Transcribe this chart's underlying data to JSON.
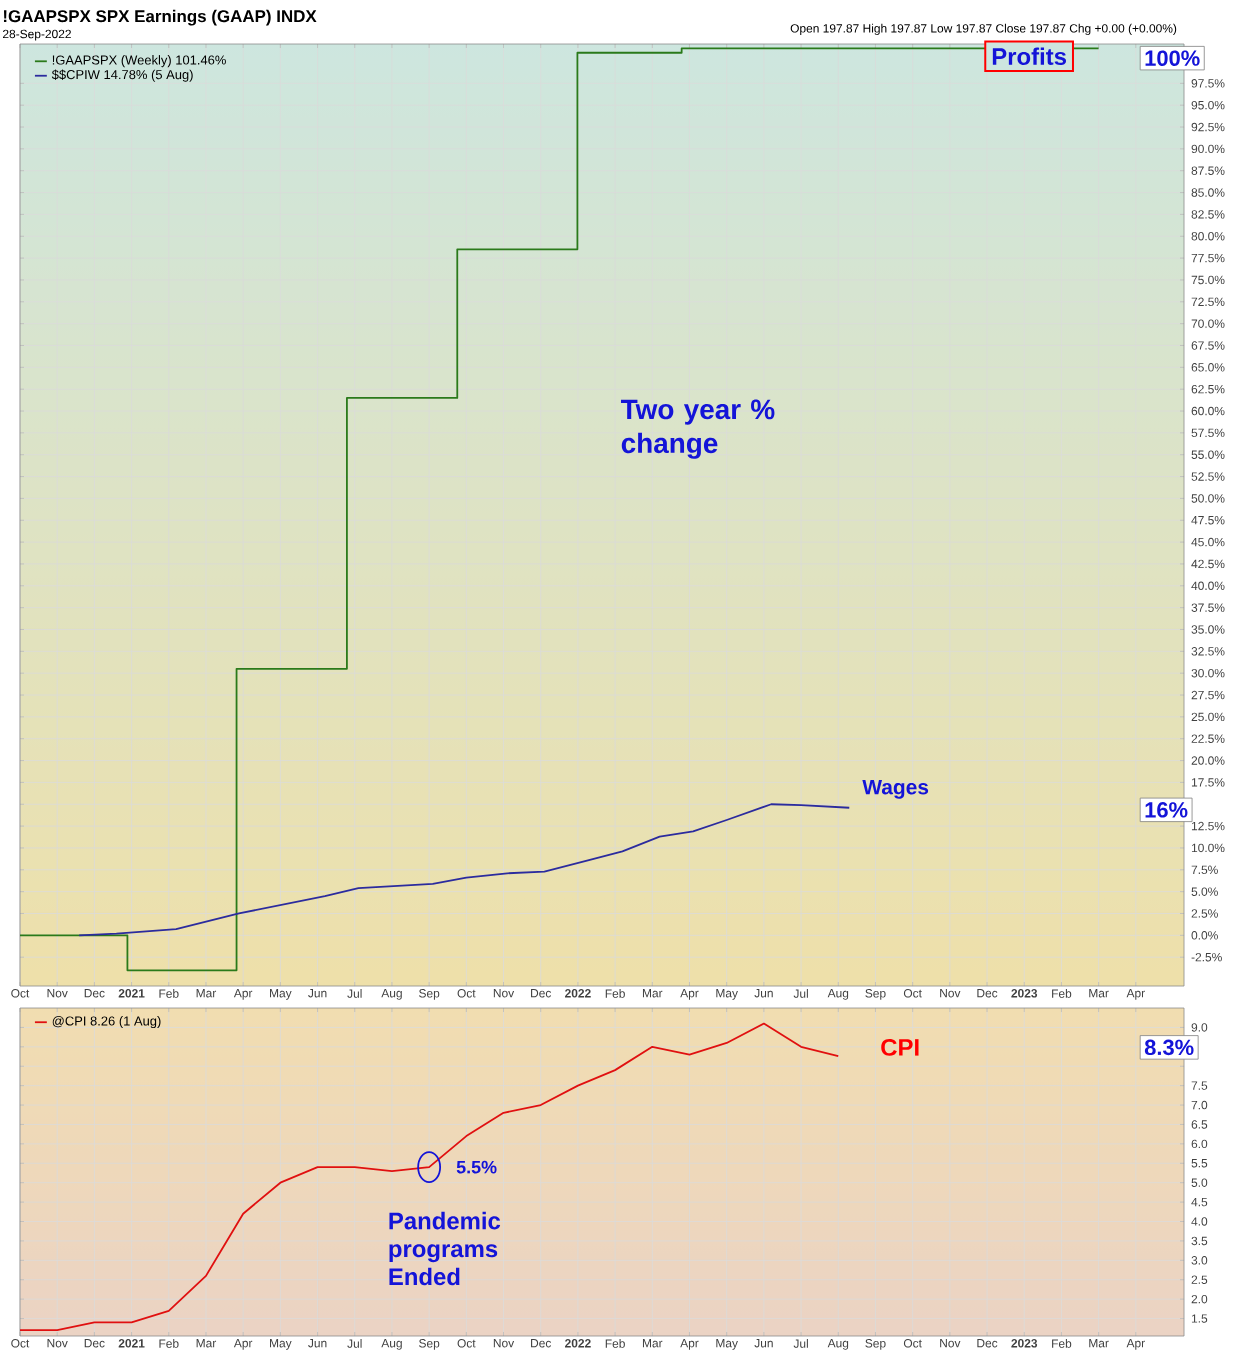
{
  "chart_data": [
    {
      "type": "line",
      "title": "!GAAPSPX SPX Earnings (GAAP) INDX",
      "subtitle": "28-Sep-2022",
      "series": [
        {
          "name": "!GAAPSPX (Weekly) 101.46%",
          "type": "step",
          "color": "#2a7a1a",
          "x": [
            "2020-10-01",
            "2020-12-28",
            "2021-03-26",
            "2021-06-25",
            "2021-09-24",
            "2021-12-31",
            "2022-03-25",
            "2023-03-01"
          ],
          "values": [
            0,
            -4,
            30.5,
            61.5,
            78.5,
            101,
            101.5,
            101.5
          ]
        },
        {
          "name": "$$CPIW 14.78% (5 Aug)",
          "type": "line",
          "color": "#2b2b9e",
          "x": [
            "2020-11-19",
            "2020-12-19",
            "2021-02-07",
            "2021-03-28",
            "2021-06-07",
            "2021-07-04",
            "2021-09-04",
            "2021-10-01",
            "2021-11-04",
            "2021-12-04",
            "2022-01-10",
            "2022-02-07",
            "2022-03-07",
            "2022-04-04",
            "2022-05-01",
            "2022-06-07",
            "2022-07-01",
            "2022-08-10"
          ],
          "values": [
            0,
            0.2,
            0.7,
            2.5,
            4.5,
            5.4,
            5.9,
            6.6,
            7.1,
            7.3,
            8.6,
            9.6,
            11.3,
            11.9,
            13.2,
            15.0,
            14.9,
            14.6
          ]
        }
      ],
      "xlim": [
        "2020-10",
        "2023-05-10"
      ],
      "ylim": [
        -5.8,
        102
      ],
      "xticks": [
        {
          "value": "2020-10",
          "label": "Oct"
        },
        {
          "value": "2020-11",
          "label": "Nov"
        },
        {
          "value": "2020-12",
          "label": "Dec"
        },
        {
          "value": "2021-01",
          "label": "2021"
        },
        {
          "value": "2021-02",
          "label": "Feb"
        },
        {
          "value": "2021-03",
          "label": "Mar"
        },
        {
          "value": "2021-04",
          "label": "Apr"
        },
        {
          "value": "2021-05",
          "label": "May"
        },
        {
          "value": "2021-06",
          "label": "Jun"
        },
        {
          "value": "2021-07",
          "label": "Jul"
        },
        {
          "value": "2021-08",
          "label": "Aug"
        },
        {
          "value": "2021-09",
          "label": "Sep"
        },
        {
          "value": "2021-10",
          "label": "Oct"
        },
        {
          "value": "2021-11",
          "label": "Nov"
        },
        {
          "value": "2021-12",
          "label": "Dec"
        },
        {
          "value": "2022-01",
          "label": "2022"
        },
        {
          "value": "2022-02",
          "label": "Feb"
        },
        {
          "value": "2022-03",
          "label": "Mar"
        },
        {
          "value": "2022-04",
          "label": "Apr"
        },
        {
          "value": "2022-05",
          "label": "May"
        },
        {
          "value": "2022-06",
          "label": "Jun"
        },
        {
          "value": "2022-07",
          "label": "Jul"
        },
        {
          "value": "2022-08",
          "label": "Aug"
        },
        {
          "value": "2022-09",
          "label": "Sep"
        },
        {
          "value": "2022-10",
          "label": "Oct"
        },
        {
          "value": "2022-11",
          "label": "Nov"
        },
        {
          "value": "2022-12",
          "label": "Dec"
        },
        {
          "value": "2023-01",
          "label": "2023"
        },
        {
          "value": "2023-02",
          "label": "Feb"
        },
        {
          "value": "2023-03",
          "label": "Mar"
        },
        {
          "value": "2023-04",
          "label": "Apr"
        }
      ],
      "yticks": [
        {
          "value": -2.5,
          "label": "-2.5%"
        },
        {
          "value": 0,
          "label": "0.0%"
        },
        {
          "value": 2.5,
          "label": "2.5%"
        },
        {
          "value": 5,
          "label": "5.0%"
        },
        {
          "value": 7.5,
          "label": "7.5%"
        },
        {
          "value": 10,
          "label": "10.0%"
        },
        {
          "value": 12.5,
          "label": "12.5%"
        },
        {
          "value": 15,
          "label": null
        },
        {
          "value": 17.5,
          "label": "17.5%"
        },
        {
          "value": 20,
          "label": "20.0%"
        },
        {
          "value": 22.5,
          "label": "22.5%"
        },
        {
          "value": 25,
          "label": "25.0%"
        },
        {
          "value": 27.5,
          "label": "27.5%"
        },
        {
          "value": 30,
          "label": "30.0%"
        },
        {
          "value": 32.5,
          "label": "32.5%"
        },
        {
          "value": 35,
          "label": "35.0%"
        },
        {
          "value": 37.5,
          "label": "37.5%"
        },
        {
          "value": 40,
          "label": "40.0%"
        },
        {
          "value": 42.5,
          "label": "42.5%"
        },
        {
          "value": 45,
          "label": "45.0%"
        },
        {
          "value": 47.5,
          "label": "47.5%"
        },
        {
          "value": 50,
          "label": "50.0%"
        },
        {
          "value": 52.5,
          "label": "52.5%"
        },
        {
          "value": 55,
          "label": "55.0%"
        },
        {
          "value": 57.5,
          "label": "57.5%"
        },
        {
          "value": 60,
          "label": "60.0%"
        },
        {
          "value": 62.5,
          "label": "62.5%"
        },
        {
          "value": 65,
          "label": "65.0%"
        },
        {
          "value": 67.5,
          "label": "67.5%"
        },
        {
          "value": 70,
          "label": "70.0%"
        },
        {
          "value": 72.5,
          "label": "72.5%"
        },
        {
          "value": 75,
          "label": "75.0%"
        },
        {
          "value": 77.5,
          "label": "77.5%"
        },
        {
          "value": 80,
          "label": "80.0%"
        },
        {
          "value": 82.5,
          "label": "82.5%"
        },
        {
          "value": 85,
          "label": "85.0%"
        },
        {
          "value": 87.5,
          "label": "87.5%"
        },
        {
          "value": 90,
          "label": "90.0%"
        },
        {
          "value": 92.5,
          "label": "92.5%"
        },
        {
          "value": 95,
          "label": "95.0%"
        },
        {
          "value": 97.5,
          "label": "97.5%"
        }
      ],
      "grid": true,
      "legend": "top left",
      "annotations": [
        "Open 197.87 High 197.87 Low 197.87 Close 197.87 Chg +0.00 (+0.00%)",
        "Two year % change",
        {
          "text": "Wages",
          "x": "2022-08-10",
          "y": 14.6
        },
        {
          "text": "Profits",
          "x": "2023-01-05",
          "y": 100.6
        },
        "100%",
        "16%"
      ]
    },
    {
      "type": "line",
      "series": [
        {
          "name": "@CPI 8.26 (1 Aug)",
          "color": "#e01010",
          "x": [
            "2020-10",
            "2020-11",
            "2020-12",
            "2021-01",
            "2021-02",
            "2021-03",
            "2021-04",
            "2021-05",
            "2021-06",
            "2021-07",
            "2021-08",
            "2021-09",
            "2021-10",
            "2021-11",
            "2021-12",
            "2022-01",
            "2022-02",
            "2022-03",
            "2022-04",
            "2022-05",
            "2022-06",
            "2022-07",
            "2022-08"
          ],
          "values": [
            1.2,
            1.2,
            1.4,
            1.4,
            1.7,
            2.6,
            4.2,
            5.0,
            5.4,
            5.4,
            5.3,
            5.4,
            6.2,
            6.8,
            7.0,
            7.5,
            7.9,
            8.5,
            8.3,
            8.6,
            9.1,
            8.5,
            8.26
          ]
        }
      ],
      "xlim": [
        "2020-10",
        "2023-05-10"
      ],
      "ylim": [
        1.05,
        9.5
      ],
      "xticks": [
        {
          "value": "2020-10",
          "label": "Oct"
        },
        {
          "value": "2020-11",
          "label": "Nov"
        },
        {
          "value": "2020-12",
          "label": "Dec"
        },
        {
          "value": "2021-01",
          "label": "2021"
        },
        {
          "value": "2021-02",
          "label": "Feb"
        },
        {
          "value": "2021-03",
          "label": "Mar"
        },
        {
          "value": "2021-04",
          "label": "Apr"
        },
        {
          "value": "2021-05",
          "label": "May"
        },
        {
          "value": "2021-06",
          "label": "Jun"
        },
        {
          "value": "2021-07",
          "label": "Jul"
        },
        {
          "value": "2021-08",
          "label": "Aug"
        },
        {
          "value": "2021-09",
          "label": "Sep"
        },
        {
          "value": "2021-10",
          "label": "Oct"
        },
        {
          "value": "2021-11",
          "label": "Nov"
        },
        {
          "value": "2021-12",
          "label": "Dec"
        },
        {
          "value": "2022-01",
          "label": "2022"
        },
        {
          "value": "2022-02",
          "label": "Feb"
        },
        {
          "value": "2022-03",
          "label": "Mar"
        },
        {
          "value": "2022-04",
          "label": "Apr"
        },
        {
          "value": "2022-05",
          "label": "May"
        },
        {
          "value": "2022-06",
          "label": "Jun"
        },
        {
          "value": "2022-07",
          "label": "Jul"
        },
        {
          "value": "2022-08",
          "label": "Aug"
        },
        {
          "value": "2022-09",
          "label": "Sep"
        },
        {
          "value": "2022-10",
          "label": "Oct"
        },
        {
          "value": "2022-11",
          "label": "Nov"
        },
        {
          "value": "2022-12",
          "label": "Dec"
        },
        {
          "value": "2023-01",
          "label": "2023"
        },
        {
          "value": "2023-02",
          "label": "Feb"
        },
        {
          "value": "2023-03",
          "label": "Mar"
        },
        {
          "value": "2023-04",
          "label": "Apr"
        }
      ],
      "yticks": [
        {
          "value": 1.5,
          "label": "1.5"
        },
        {
          "value": 2,
          "label": "2.0"
        },
        {
          "value": 2.5,
          "label": "2.5"
        },
        {
          "value": 3,
          "label": "3.0"
        },
        {
          "value": 3.5,
          "label": "3.5"
        },
        {
          "value": 4,
          "label": "4.0"
        },
        {
          "value": 4.5,
          "label": "4.5"
        },
        {
          "value": 5,
          "label": "5.0"
        },
        {
          "value": 5.5,
          "label": "5.5"
        },
        {
          "value": 6,
          "label": "6.0"
        },
        {
          "value": 6.5,
          "label": "6.5"
        },
        {
          "value": 7,
          "label": "7.0"
        },
        {
          "value": 7.5,
          "label": "7.5"
        },
        {
          "value": 8,
          "label": null
        },
        {
          "value": 8.5,
          "label": null
        },
        {
          "value": 9,
          "label": "9.0"
        }
      ],
      "grid": true,
      "legend": "top left",
      "annotations": [
        "CPI",
        {
          "text": "5.5%",
          "x": "2021-09",
          "y": 5.4
        },
        "Pandemic programs Ended",
        "8.3%"
      ]
    }
  ]
}
